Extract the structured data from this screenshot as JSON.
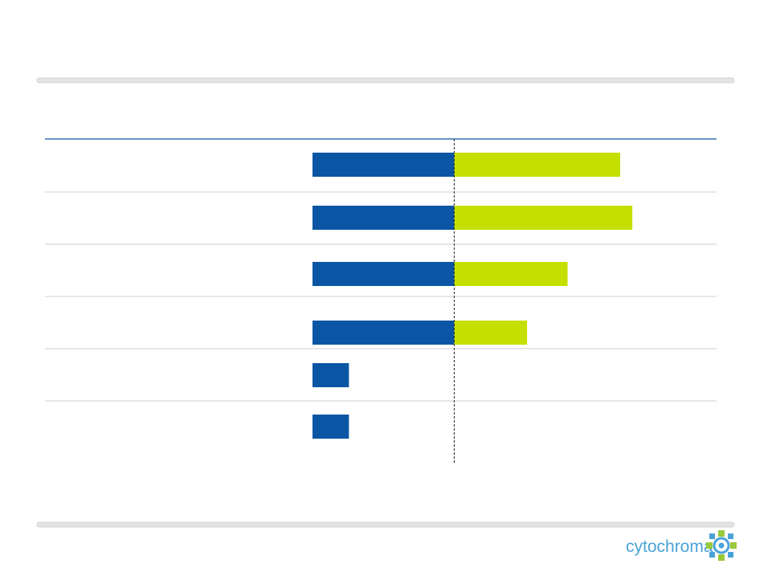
{
  "chart_data": {
    "type": "stacked-hbar",
    "series": [
      {
        "color": "#0b56a4",
        "values": [
          35,
          35,
          35,
          35,
          9,
          9
        ]
      },
      {
        "color": "#c5e000",
        "values": [
          41,
          44,
          28,
          18,
          null,
          null
        ]
      }
    ],
    "xlim": [
      0,
      100
    ],
    "reference_line": 35
  },
  "logo": "cytochroma"
}
